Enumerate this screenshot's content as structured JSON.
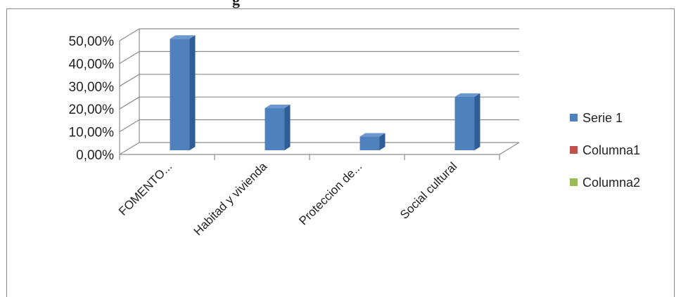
{
  "page": {
    "top_fragment": "g"
  },
  "chart_data": {
    "type": "bar",
    "title": "",
    "xlabel": "",
    "ylabel": "",
    "ylim": [
      0,
      50
    ],
    "y_tick_labels": [
      "0,00%",
      "10,00%",
      "20,00%",
      "30,00%",
      "40,00%",
      "50,00%"
    ],
    "categories": [
      "FOMENTO...",
      "Habitad y vivienda",
      "Proteccion de...",
      "Social cultural"
    ],
    "series": [
      {
        "name": "Serie 1",
        "values": [
          49,
          18.5,
          6,
          23.5
        ],
        "color": "#4f81bd"
      },
      {
        "name": "Columna1",
        "values": [
          0,
          0,
          0,
          0
        ],
        "color": "#c0504d"
      },
      {
        "name": "Columna2",
        "values": [
          0,
          0,
          0,
          0
        ],
        "color": "#9bbb59"
      }
    ],
    "style": "3d-clustered-column",
    "grid": true,
    "legend_position": "right"
  }
}
